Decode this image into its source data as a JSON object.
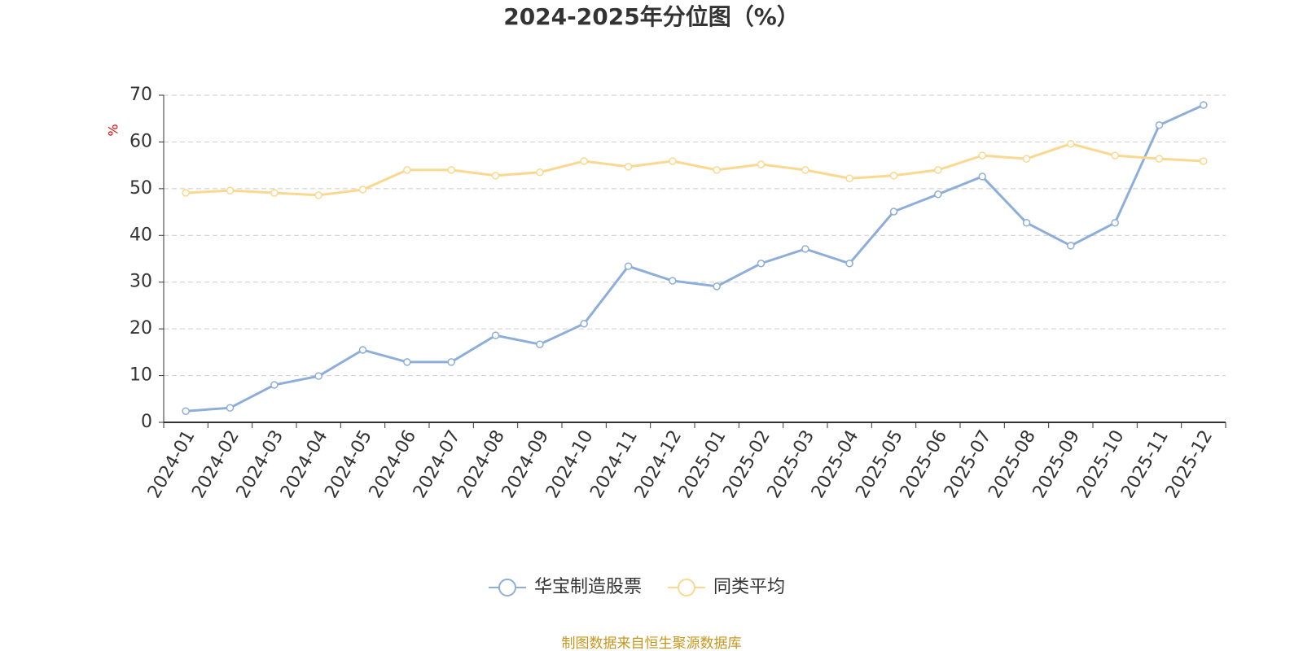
{
  "chart_data": {
    "type": "line",
    "title": "2024-2025年分位图（%）",
    "y_label": "%",
    "categories": [
      "2024-01",
      "2024-02",
      "2024-03",
      "2024-04",
      "2024-05",
      "2024-06",
      "2024-07",
      "2024-08",
      "2024-09",
      "2024-10",
      "2024-11",
      "2024-12",
      "2025-01",
      "2025-02",
      "2025-03",
      "2025-04",
      "2025-05",
      "2025-06",
      "2025-07",
      "2025-08",
      "2025-09",
      "2025-10",
      "2025-11",
      "2025-12"
    ],
    "series": [
      {
        "name": "华宝制造股票",
        "color": "#8eaed9",
        "values": [
          2.4,
          3.1,
          8.0,
          9.9,
          15.5,
          12.9,
          12.9,
          18.6,
          16.7,
          21.1,
          33.4,
          30.3,
          29.1,
          34.0,
          37.1,
          34.0,
          45.1,
          48.8,
          52.6,
          42.7,
          37.8,
          42.7,
          63.6,
          67.9
        ]
      },
      {
        "name": "同类平均",
        "color": "#fbd88f",
        "values": [
          49.1,
          49.6,
          49.1,
          48.6,
          49.8,
          54.0,
          54.0,
          52.8,
          53.5,
          55.9,
          54.7,
          55.9,
          54.0,
          55.2,
          54.0,
          52.2,
          52.8,
          54.0,
          57.1,
          56.4,
          59.6,
          57.1,
          56.4,
          55.9
        ]
      }
    ],
    "ylim": [
      0,
      70
    ],
    "yticks": [
      0,
      10,
      20,
      30,
      40,
      50,
      60,
      70
    ],
    "grid": true,
    "legend": "bottom",
    "source": "制图数据来自恒生聚源数据库"
  }
}
